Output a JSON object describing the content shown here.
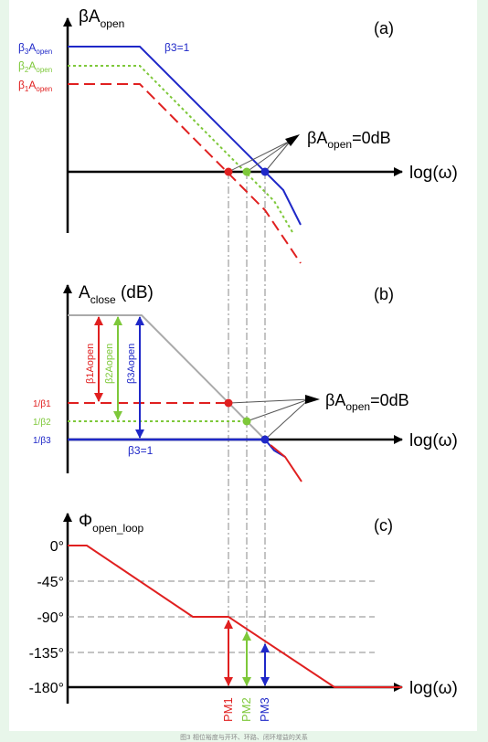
{
  "panel_a": {
    "tag": "(a)",
    "y_axis": {
      "main": "βA",
      "sub": "open"
    },
    "x_axis": "log(ω)",
    "beta1_label": {
      "pre": "β",
      "idx": "1",
      "mid": "A",
      "sub": "open"
    },
    "beta2_label": {
      "pre": "β",
      "idx": "2",
      "mid": "A",
      "sub": "open"
    },
    "beta3_label": {
      "pre": "β",
      "idx": "3",
      "mid": "A",
      "sub": "open"
    },
    "beta3_eq": "β3=1",
    "annotation": {
      "main": "βA",
      "sub": "open",
      "tail": "=0dB"
    }
  },
  "panel_b": {
    "tag": "(b)",
    "y_axis": {
      "main": "A",
      "sub": "close",
      "tail": " (dB)"
    },
    "x_axis": "log(ω)",
    "left_labels": [
      "1/β1",
      "1/β2",
      "1/β3"
    ],
    "vertical_labels": [
      "β1Aopen",
      "β2Aopen",
      "β3Aopen"
    ],
    "beta3_eq": "β3=1",
    "annotation": {
      "main": "βA",
      "sub": "open",
      "tail": "=0dB"
    }
  },
  "panel_c": {
    "tag": "(c)",
    "y_axis": {
      "main": "Φ",
      "sub": "open_loop"
    },
    "x_axis": "log(ω)",
    "ticks": [
      "0°",
      "-45°",
      "-90°",
      "-135°",
      "-180°"
    ],
    "pm_labels": [
      "PM1",
      "PM2",
      "PM3"
    ]
  },
  "caption": "图3 相位裕度与开环、环路、闭环增益的关系",
  "colors": {
    "beta1": "#e02020",
    "beta2": "#7ec83a",
    "beta3": "#1f28c8",
    "gray": "#aaaaaa",
    "axis": "#000000"
  }
}
